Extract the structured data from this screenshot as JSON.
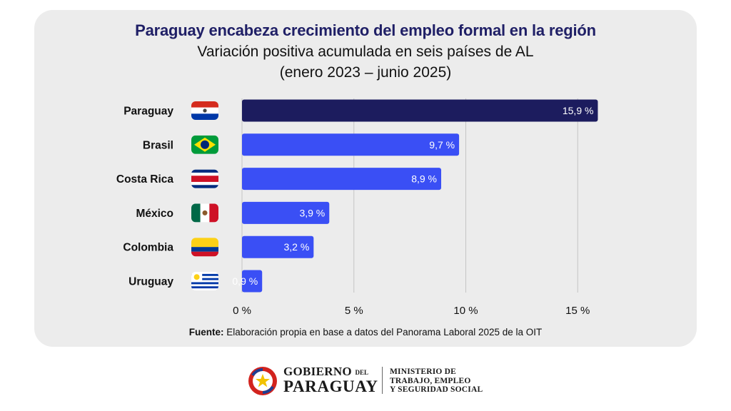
{
  "header": {
    "title": "Paraguay encabeza crecimiento del empleo formal en la región",
    "subtitle_line1": "Variación positiva acumulada en seis países de AL",
    "subtitle_line2": "(enero 2023 – junio 2025)"
  },
  "chart_data": {
    "type": "bar",
    "orientation": "horizontal",
    "categories": [
      "Paraguay",
      "Brasil",
      "Costa Rica",
      "México",
      "Colombia",
      "Uruguay"
    ],
    "values": [
      15.9,
      9.7,
      8.9,
      3.9,
      3.2,
      0.9
    ],
    "value_labels": [
      "15,9 %",
      "9,7 %",
      "8,9 %",
      "3,9 %",
      "3,2 %",
      "0,9 %"
    ],
    "x_ticks": [
      0,
      5,
      10,
      15
    ],
    "x_tick_labels": [
      "0 %",
      "5 %",
      "10 %",
      "15 %"
    ],
    "xlim": [
      0,
      16.5
    ],
    "grid": true,
    "flags": [
      "paraguay-flag-icon",
      "brazil-flag-icon",
      "costa-rica-flag-icon",
      "mexico-flag-icon",
      "colombia-flag-icon",
      "uruguay-flag-icon"
    ],
    "colors": {
      "highlight": "#1c1c5e",
      "bar": "#3a4ff5",
      "grid": "#c4c4c4",
      "label_text": "#ffffff"
    }
  },
  "source": {
    "label": "Fuente:",
    "text": "Elaboración propia en base a datos del Panorama Laboral 2025 de la OIT"
  },
  "footer": {
    "gob_line1": "GOBIERNO",
    "gob_del": "DEL",
    "gob_line2": "PARAGUAY",
    "ministry_line1": "MINISTERIO DE",
    "ministry_line2": "TRABAJO, EMPLEO",
    "ministry_line3": "Y SEGURIDAD SOCIAL"
  }
}
